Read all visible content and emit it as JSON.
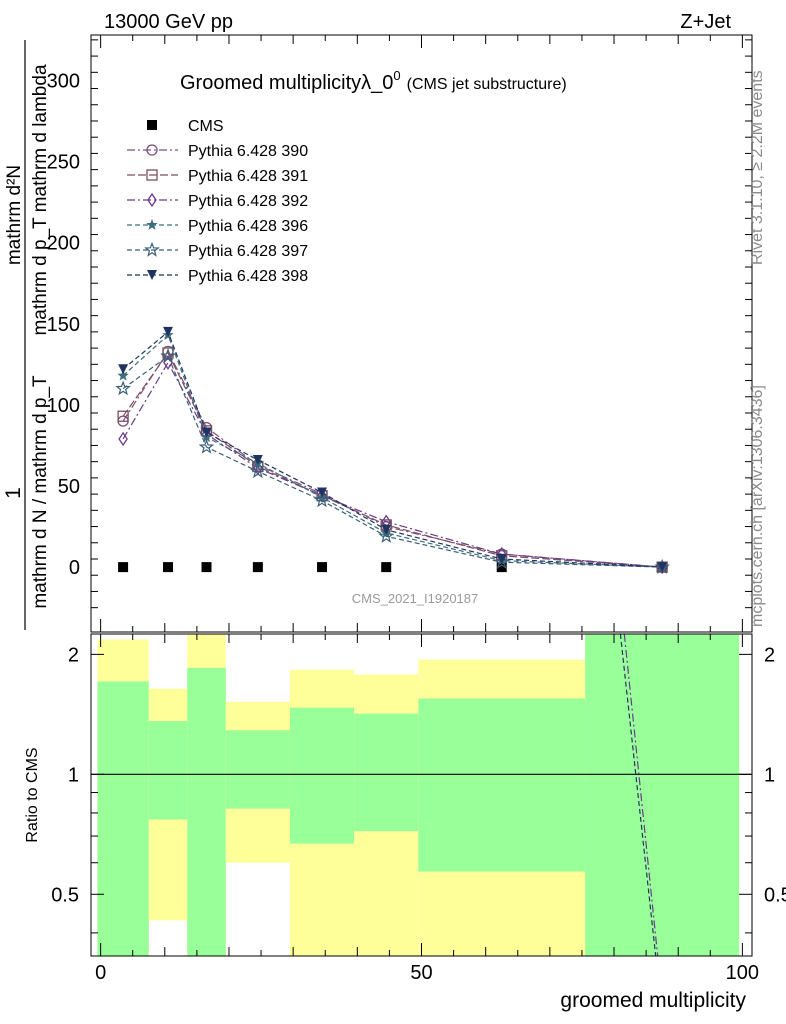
{
  "header": {
    "left": "13000 GeV pp",
    "right": "Z+Jet"
  },
  "side_texts": {
    "rivet": "Rivet 3.1.10, ≥ 2.2M events",
    "mcplots": "mcplots.cern.ch [arXiv:1306.3436]"
  },
  "watermark": "CMS_2021_I1920187",
  "chart_data": [
    {
      "type": "line",
      "title": "Groomed multiplicityλ_0⁰",
      "title_main": "Groomed multiplicityλ_0",
      "title_sup": "0",
      "title_small": "(CMS jet substructure)",
      "ylabel_parts": {
        "one": "1",
        "denominator": "mathrm d N / mathrm d p_T",
        "numerator": "mathrm d²N",
        "lower": "mathrm d p_T mathrm d lambda"
      },
      "xlim": [
        -1.5,
        101.5
      ],
      "ylim": [
        -40,
        328
      ],
      "y_ticks": [
        0,
        50,
        100,
        150,
        200,
        250,
        300
      ],
      "y_tick_labels": [
        "0",
        "50",
        "100",
        "150",
        "200",
        "250",
        "300"
      ],
      "legend_position": "top-left",
      "series": [
        {
          "name": "CMS",
          "color": "#000000",
          "marker": "square-filled",
          "dash": "none",
          "x": [
            3.5,
            10.5,
            16.5,
            24.5,
            34.5,
            44.5,
            62.5,
            87.5
          ],
          "y": [
            0,
            0,
            0,
            0,
            0,
            0,
            0,
            0
          ]
        },
        {
          "name": "Pythia 6.428 390",
          "color": "#7b4f7b",
          "marker": "circle-open",
          "dash": "8,3,2,3",
          "x": [
            3.5,
            10.5,
            16.5,
            24.5,
            34.5,
            44.5,
            62.5,
            87.5
          ],
          "y": [
            90,
            133,
            86,
            63,
            45,
            25,
            8,
            0
          ]
        },
        {
          "name": "Pythia 6.428 391",
          "color": "#7b4f5e",
          "marker": "square-open",
          "dash": "8,3",
          "x": [
            3.5,
            10.5,
            16.5,
            24.5,
            34.5,
            44.5,
            62.5,
            87.5
          ],
          "y": [
            93,
            132,
            84,
            62,
            44,
            26,
            7,
            0
          ]
        },
        {
          "name": "Pythia 6.428 392",
          "color": "#6a3a8c",
          "marker": "diamond-open",
          "dash": "8,3,2,3",
          "x": [
            3.5,
            10.5,
            16.5,
            24.5,
            34.5,
            44.5,
            62.5,
            87.5
          ],
          "y": [
            79,
            126,
            82,
            61,
            44,
            28,
            8,
            0
          ]
        },
        {
          "name": "Pythia 6.428 396",
          "color": "#3d6e7c",
          "marker": "star-filled",
          "dash": "5,3",
          "x": [
            3.5,
            10.5,
            16.5,
            24.5,
            34.5,
            44.5,
            62.5,
            87.5
          ],
          "y": [
            118,
            143,
            80,
            64,
            43,
            21,
            4,
            0
          ]
        },
        {
          "name": "Pythia 6.428 397",
          "color": "#3b5f78",
          "marker": "star-open",
          "dash": "5,3",
          "x": [
            3.5,
            10.5,
            16.5,
            24.5,
            34.5,
            44.5,
            62.5,
            87.5
          ],
          "y": [
            110,
            130,
            74,
            59,
            41,
            19,
            3,
            0
          ]
        },
        {
          "name": "Pythia 6.428 398",
          "color": "#1f3462",
          "marker": "triangle-down-filled",
          "dash": "5,3",
          "x": [
            3.5,
            10.5,
            16.5,
            24.5,
            34.5,
            44.5,
            62.5,
            87.5
          ],
          "y": [
            122,
            145,
            83,
            66,
            46,
            23,
            5,
            0
          ]
        }
      ]
    },
    {
      "type": "area",
      "ylabel": "Ratio to CMS",
      "xlabel": "groomed multiplicity",
      "xlim": [
        -1.5,
        101.5
      ],
      "ylim": [
        0.35,
        2.25
      ],
      "x_ticks": [
        0,
        50,
        100
      ],
      "x_tick_labels": [
        "0",
        "50",
        "100"
      ],
      "y_ticks": [
        0.5,
        1,
        2
      ],
      "y_tick_labels": [
        "0.5",
        "1",
        "2"
      ],
      "reference_line": 1,
      "bands": [
        {
          "x0": -0.5,
          "x1": 7.5,
          "yellow": [
            0.35,
            2.18
          ],
          "green": [
            0.35,
            1.71
          ]
        },
        {
          "x0": 7.5,
          "x1": 13.5,
          "yellow": [
            0.43,
            1.64
          ],
          "green": [
            0.77,
            1.36
          ]
        },
        {
          "x0": 13.5,
          "x1": 19.5,
          "yellow": [
            0.35,
            2.25
          ],
          "green": [
            0.35,
            1.85
          ]
        },
        {
          "x0": 19.5,
          "x1": 29.5,
          "yellow": [
            0.6,
            1.52
          ],
          "green": [
            0.82,
            1.29
          ]
        },
        {
          "x0": 29.5,
          "x1": 39.5,
          "yellow": [
            0.35,
            1.83
          ],
          "green": [
            0.67,
            1.47
          ]
        },
        {
          "x0": 39.5,
          "x1": 49.5,
          "yellow": [
            0.35,
            1.78
          ],
          "green": [
            0.72,
            1.42
          ]
        },
        {
          "x0": 49.5,
          "x1": 75.5,
          "yellow": [
            0.35,
            1.94
          ],
          "green": [
            0.57,
            1.55
          ]
        },
        {
          "x0": 75.5,
          "x1": 99.5,
          "yellow": [
            0.35,
            2.25
          ],
          "green": [
            0.35,
            2.25
          ]
        }
      ],
      "ratio_lines": [
        {
          "color": "#1f3462",
          "dash": "5,3",
          "x": [
            81.0,
            86.5
          ],
          "y": [
            2.25,
            0.35
          ]
        },
        {
          "color": "#6a3a8c",
          "dash": "8,3,2,3",
          "x": [
            81.6,
            86.8
          ],
          "y": [
            2.25,
            0.35
          ]
        }
      ]
    }
  ]
}
